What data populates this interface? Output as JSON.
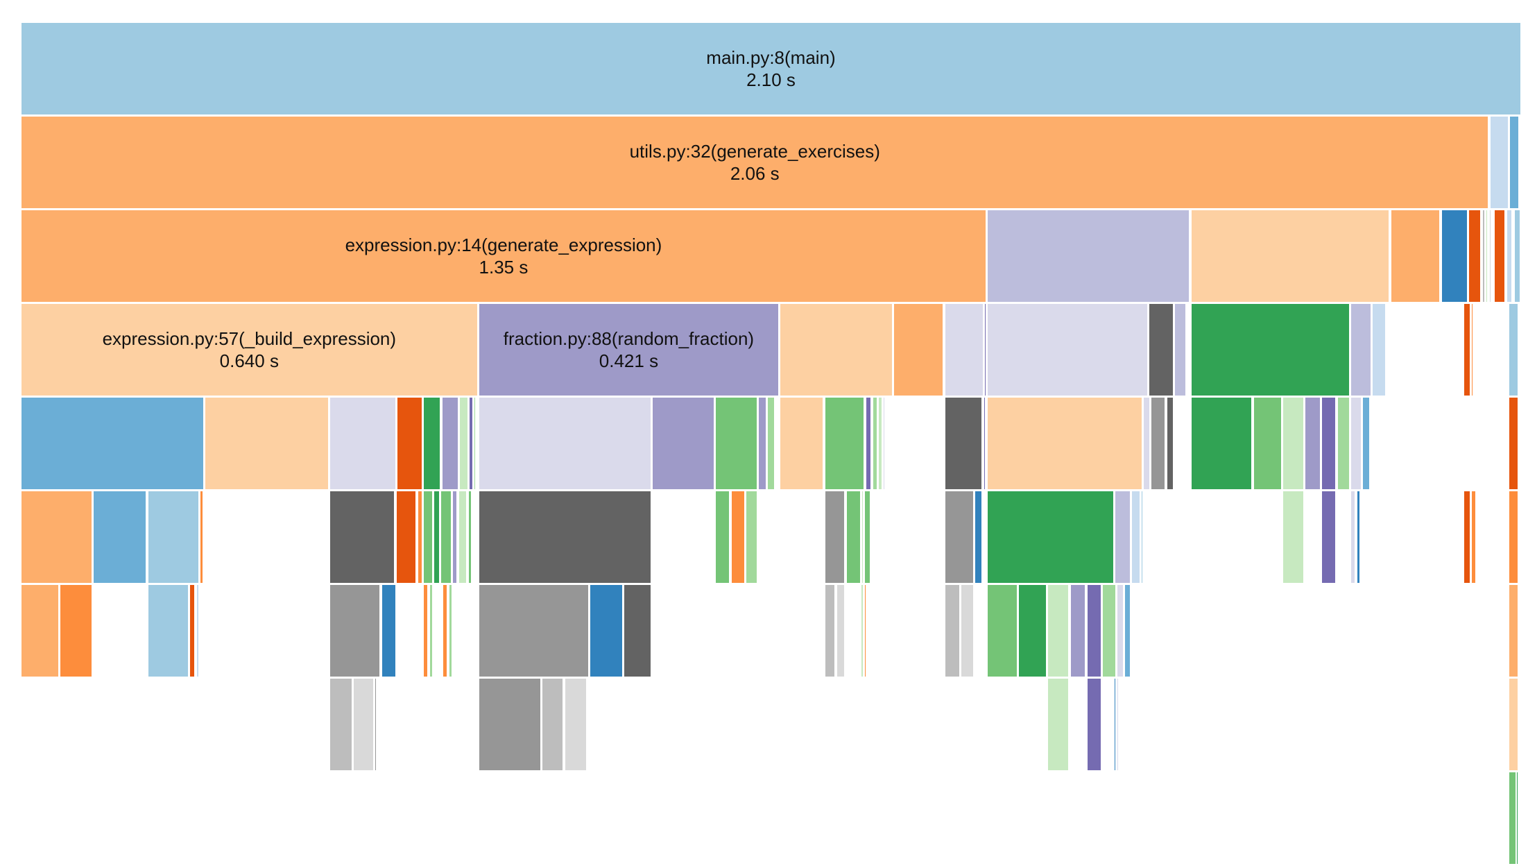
{
  "chart_data": {
    "type": "icicle",
    "title": "",
    "unit": "s",
    "total_time": 2.1,
    "note": "Spans are fractions [start, end] of the root frame's total time; depth is stack level (0 = root).",
    "labeled_frames": [
      {
        "depth": 0,
        "name": "main.py:8(main)",
        "time": "2.10 s",
        "span": [
          0.0,
          1.0
        ],
        "color": "#9ecae1"
      },
      {
        "depth": 1,
        "name": "utils.py:32(generate_exercises)",
        "time": "2.06 s",
        "span": [
          0.0,
          0.9785
        ],
        "color": "#fdae6b"
      },
      {
        "depth": 2,
        "name": "expression.py:14(generate_expression)",
        "time": "1.35 s",
        "span": [
          0.0,
          0.6435
        ],
        "color": "#fdae6b"
      },
      {
        "depth": 3,
        "name": "expression.py:57(_build_expression)",
        "time": "0.640 s",
        "span": [
          0.0,
          0.3045
        ],
        "color": "#fdd0a2"
      },
      {
        "depth": 3,
        "name": "fraction.py:88(random_fraction)",
        "time": "0.421 s",
        "span": [
          0.3052,
          0.5052
        ],
        "color": "#9e9ac8"
      }
    ],
    "unlabeled_frames": [
      {
        "depth": 1,
        "span": [
          0.9792,
          0.9916
        ],
        "color": "#c6dbef"
      },
      {
        "depth": 1,
        "span": [
          0.9922,
          0.9987
        ],
        "color": "#6baed6"
      },
      {
        "depth": 2,
        "span": [
          0.6442,
          0.7792
        ],
        "color": "#bcbddc"
      },
      {
        "depth": 2,
        "span": [
          0.7799,
          0.9123
        ],
        "color": "#fdd0a2"
      },
      {
        "depth": 2,
        "span": [
          0.913,
          0.9461
        ],
        "color": "#fdae6b"
      },
      {
        "depth": 2,
        "span": [
          0.9468,
          0.9643
        ],
        "color": "#3182bd"
      },
      {
        "depth": 2,
        "span": [
          0.9649,
          0.9734
        ],
        "color": "#e6550d"
      },
      {
        "depth": 2,
        "span": [
          0.974,
          0.976
        ],
        "color": "#bdbdbd"
      },
      {
        "depth": 2,
        "span": [
          0.9766,
          0.9779
        ],
        "color": "#c7e9c0"
      },
      {
        "depth": 2,
        "span": [
          0.9786,
          0.9799
        ],
        "color": "#d9d9d9"
      },
      {
        "depth": 2,
        "span": [
          0.9805,
          0.9812
        ],
        "color": "#d9d9d9"
      },
      {
        "depth": 2,
        "span": [
          0.9818,
          0.9896
        ],
        "color": "#e6550d"
      },
      {
        "depth": 2,
        "span": [
          0.9903,
          0.9942
        ],
        "color": "#c6dbef"
      },
      {
        "depth": 2,
        "span": [
          0.9955,
          0.9994
        ],
        "color": "#9ecae1"
      },
      {
        "depth": 3,
        "span": [
          0.5058,
          0.5812
        ],
        "color": "#fdd0a2"
      },
      {
        "depth": 3,
        "span": [
          0.5818,
          0.6149
        ],
        "color": "#fdae6b"
      },
      {
        "depth": 3,
        "span": [
          0.6156,
          0.6416
        ],
        "color": "#dadaeb"
      },
      {
        "depth": 3,
        "span": [
          0.6422,
          0.6435
        ],
        "color": "#756bb1"
      },
      {
        "depth": 3,
        "span": [
          0.6442,
          0.7513
        ],
        "color": "#dadaeb"
      },
      {
        "depth": 3,
        "span": [
          0.7519,
          0.7682
        ],
        "color": "#636363"
      },
      {
        "depth": 3,
        "span": [
          0.7688,
          0.7766
        ],
        "color": "#bcbddc"
      },
      {
        "depth": 3,
        "span": [
          0.7799,
          0.8857
        ],
        "color": "#31a354"
      },
      {
        "depth": 3,
        "span": [
          0.8864,
          0.9
        ],
        "color": "#bcbddc"
      },
      {
        "depth": 3,
        "span": [
          0.9006,
          0.9097
        ],
        "color": "#c6dbef"
      },
      {
        "depth": 3,
        "span": [
          0.9103,
          0.911
        ],
        "color": "#9ecae1"
      },
      {
        "depth": 3,
        "span": [
          0.9617,
          0.9662
        ],
        "color": "#e6550d"
      },
      {
        "depth": 3,
        "span": [
          0.9669,
          0.9682
        ],
        "color": "#fd8d3c"
      },
      {
        "depth": 3,
        "span": [
          0.9779,
          0.9786
        ],
        "color": "#c7e9c0"
      },
      {
        "depth": 3,
        "span": [
          0.9915,
          0.9981
        ],
        "color": "#9ecae1"
      },
      {
        "depth": 4,
        "span": [
          0.0,
          0.1221
        ],
        "color": "#6baed6"
      },
      {
        "depth": 4,
        "span": [
          0.1227,
          0.2052
        ],
        "color": "#fdd0a2"
      },
      {
        "depth": 4,
        "span": [
          0.2058,
          0.25
        ],
        "color": "#dadaeb"
      },
      {
        "depth": 4,
        "span": [
          0.2506,
          0.2675
        ],
        "color": "#e6550d"
      },
      {
        "depth": 4,
        "span": [
          0.2682,
          0.2799
        ],
        "color": "#31a354"
      },
      {
        "depth": 4,
        "span": [
          0.2805,
          0.2916
        ],
        "color": "#9e9ac8"
      },
      {
        "depth": 4,
        "span": [
          0.2922,
          0.2981
        ],
        "color": "#c7e9c0"
      },
      {
        "depth": 4,
        "span": [
          0.2987,
          0.3013
        ],
        "color": "#756bb1"
      },
      {
        "depth": 4,
        "span": [
          0.3019,
          0.3032
        ],
        "color": "#a1d99b"
      },
      {
        "depth": 4,
        "span": [
          0.3052,
          0.4201
        ],
        "color": "#dadaeb"
      },
      {
        "depth": 4,
        "span": [
          0.4208,
          0.4623
        ],
        "color": "#9e9ac8"
      },
      {
        "depth": 4,
        "span": [
          0.463,
          0.4909
        ],
        "color": "#74c476"
      },
      {
        "depth": 4,
        "span": [
          0.4916,
          0.4968
        ],
        "color": "#9e9ac8"
      },
      {
        "depth": 4,
        "span": [
          0.4974,
          0.5026
        ],
        "color": "#a1d99b"
      },
      {
        "depth": 4,
        "span": [
          0.5058,
          0.5351
        ],
        "color": "#fdd0a2"
      },
      {
        "depth": 4,
        "span": [
          0.5357,
          0.5623
        ],
        "color": "#74c476"
      },
      {
        "depth": 4,
        "span": [
          0.563,
          0.5669
        ],
        "color": "#756bb1"
      },
      {
        "depth": 4,
        "span": [
          0.5675,
          0.5708
        ],
        "color": "#a1d99b"
      },
      {
        "depth": 4,
        "span": [
          0.5714,
          0.574
        ],
        "color": "#c7e9c0"
      },
      {
        "depth": 4,
        "span": [
          0.5747,
          0.576
        ],
        "color": "#dadaeb"
      },
      {
        "depth": 4,
        "span": [
          0.6156,
          0.6409
        ],
        "color": "#636363"
      },
      {
        "depth": 4,
        "span": [
          0.6416,
          0.6429
        ],
        "color": "#756bb1"
      },
      {
        "depth": 4,
        "span": [
          0.6442,
          0.7474
        ],
        "color": "#fdd0a2"
      },
      {
        "depth": 4,
        "span": [
          0.7481,
          0.7526
        ],
        "color": "#dadaeb"
      },
      {
        "depth": 4,
        "span": [
          0.7532,
          0.763
        ],
        "color": "#969696"
      },
      {
        "depth": 4,
        "span": [
          0.7636,
          0.7682
        ],
        "color": "#636363"
      },
      {
        "depth": 4,
        "span": [
          0.7799,
          0.8208
        ],
        "color": "#31a354"
      },
      {
        "depth": 4,
        "span": [
          0.8214,
          0.8403
        ],
        "color": "#74c476"
      },
      {
        "depth": 4,
        "span": [
          0.8409,
          0.8552
        ],
        "color": "#c7e9c0"
      },
      {
        "depth": 4,
        "span": [
          0.8558,
          0.8662
        ],
        "color": "#9e9ac8"
      },
      {
        "depth": 4,
        "span": [
          0.8669,
          0.8766
        ],
        "color": "#756bb1"
      },
      {
        "depth": 4,
        "span": [
          0.8773,
          0.8857
        ],
        "color": "#a1d99b"
      },
      {
        "depth": 4,
        "span": [
          0.8864,
          0.8935
        ],
        "color": "#dadaeb"
      },
      {
        "depth": 4,
        "span": [
          0.8942,
          0.8994
        ],
        "color": "#6baed6"
      },
      {
        "depth": 4,
        "span": [
          0.9916,
          0.9981
        ],
        "color": "#e6550d"
      },
      {
        "depth": 5,
        "span": [
          0.0,
          0.0474
        ],
        "color": "#fdae6b"
      },
      {
        "depth": 5,
        "span": [
          0.0481,
          0.0838
        ],
        "color": "#6baed6"
      },
      {
        "depth": 5,
        "span": [
          0.0844,
          0.1188
        ],
        "color": "#9ecae1"
      },
      {
        "depth": 5,
        "span": [
          0.1195,
          0.1214
        ],
        "color": "#fd8d3c"
      },
      {
        "depth": 5,
        "span": [
          0.2058,
          0.2494
        ],
        "color": "#636363"
      },
      {
        "depth": 5,
        "span": [
          0.25,
          0.2636
        ],
        "color": "#e6550d"
      },
      {
        "depth": 5,
        "span": [
          0.2643,
          0.2675
        ],
        "color": "#fd8d3c"
      },
      {
        "depth": 5,
        "span": [
          0.2682,
          0.2747
        ],
        "color": "#74c476"
      },
      {
        "depth": 5,
        "span": [
          0.2753,
          0.2792
        ],
        "color": "#31a354"
      },
      {
        "depth": 5,
        "span": [
          0.2799,
          0.287
        ],
        "color": "#74c476"
      },
      {
        "depth": 5,
        "span": [
          0.2877,
          0.2909
        ],
        "color": "#9e9ac8"
      },
      {
        "depth": 5,
        "span": [
          0.2916,
          0.2974
        ],
        "color": "#c7e9c0"
      },
      {
        "depth": 5,
        "span": [
          0.2981,
          0.3006
        ],
        "color": "#74c476"
      },
      {
        "depth": 5,
        "span": [
          0.3052,
          0.4201
        ],
        "color": "#636363"
      },
      {
        "depth": 5,
        "span": [
          0.463,
          0.4727
        ],
        "color": "#74c476"
      },
      {
        "depth": 5,
        "span": [
          0.4734,
          0.4825
        ],
        "color": "#fd8d3c"
      },
      {
        "depth": 5,
        "span": [
          0.4831,
          0.4909
        ],
        "color": "#a1d99b"
      },
      {
        "depth": 5,
        "span": [
          0.5357,
          0.5494
        ],
        "color": "#969696"
      },
      {
        "depth": 5,
        "span": [
          0.55,
          0.5597
        ],
        "color": "#74c476"
      },
      {
        "depth": 5,
        "span": [
          0.5604,
          0.5617
        ],
        "color": "#c7e9c0"
      },
      {
        "depth": 5,
        "span": [
          0.5623,
          0.5662
        ],
        "color": "#74c476"
      },
      {
        "depth": 5,
        "span": [
          0.574,
          0.5747
        ],
        "color": "#c7e9c0"
      },
      {
        "depth": 5,
        "span": [
          0.6156,
          0.6351
        ],
        "color": "#969696"
      },
      {
        "depth": 5,
        "span": [
          0.6357,
          0.6409
        ],
        "color": "#3182bd"
      },
      {
        "depth": 5,
        "span": [
          0.6442,
          0.7286
        ],
        "color": "#31a354"
      },
      {
        "depth": 5,
        "span": [
          0.7292,
          0.7396
        ],
        "color": "#bcbddc"
      },
      {
        "depth": 5,
        "span": [
          0.7403,
          0.7461
        ],
        "color": "#c6dbef"
      },
      {
        "depth": 5,
        "span": [
          0.7468,
          0.7481
        ],
        "color": "#9ecae1"
      },
      {
        "depth": 5,
        "span": [
          0.8409,
          0.8552
        ],
        "color": "#c7e9c0"
      },
      {
        "depth": 5,
        "span": [
          0.8669,
          0.8766
        ],
        "color": "#756bb1"
      },
      {
        "depth": 5,
        "span": [
          0.8864,
          0.8896
        ],
        "color": "#dadaeb"
      },
      {
        "depth": 5,
        "span": [
          0.8903,
          0.8929
        ],
        "color": "#3182bd"
      },
      {
        "depth": 5,
        "span": [
          0.9617,
          0.9662
        ],
        "color": "#e6550d"
      },
      {
        "depth": 5,
        "span": [
          0.9669,
          0.9701
        ],
        "color": "#fd8d3c"
      },
      {
        "depth": 5,
        "span": [
          0.9766,
          0.9773
        ],
        "color": "#c7e9c0"
      },
      {
        "depth": 5,
        "span": [
          0.9916,
          0.9981
        ],
        "color": "#fd8d3c"
      },
      {
        "depth": 6,
        "span": [
          0.0,
          0.0253
        ],
        "color": "#fdae6b"
      },
      {
        "depth": 6,
        "span": [
          0.026,
          0.0474
        ],
        "color": "#fd8d3c"
      },
      {
        "depth": 6,
        "span": [
          0.0844,
          0.1117
        ],
        "color": "#9ecae1"
      },
      {
        "depth": 6,
        "span": [
          0.1123,
          0.1162
        ],
        "color": "#e6550d"
      },
      {
        "depth": 6,
        "span": [
          0.1169,
          0.1188
        ],
        "color": "#c6dbef"
      },
      {
        "depth": 6,
        "span": [
          0.2058,
          0.2396
        ],
        "color": "#969696"
      },
      {
        "depth": 6,
        "span": [
          0.2403,
          0.25
        ],
        "color": "#3182bd"
      },
      {
        "depth": 6,
        "span": [
          0.2682,
          0.2714
        ],
        "color": "#fd8d3c"
      },
      {
        "depth": 6,
        "span": [
          0.2721,
          0.2747
        ],
        "color": "#a1d99b"
      },
      {
        "depth": 6,
        "span": [
          0.2812,
          0.2844
        ],
        "color": "#fd8d3c"
      },
      {
        "depth": 6,
        "span": [
          0.2851,
          0.2877
        ],
        "color": "#a1d99b"
      },
      {
        "depth": 6,
        "span": [
          0.2961,
          0.2968
        ],
        "color": "#fd8d3c"
      },
      {
        "depth": 6,
        "span": [
          0.2974,
          0.2981
        ],
        "color": "#a1d99b"
      },
      {
        "depth": 6,
        "span": [
          0.3052,
          0.3785
        ],
        "color": "#969696"
      },
      {
        "depth": 6,
        "span": [
          0.3792,
          0.4013
        ],
        "color": "#3182bd"
      },
      {
        "depth": 6,
        "span": [
          0.4019,
          0.4201
        ],
        "color": "#636363"
      },
      {
        "depth": 6,
        "span": [
          0.5357,
          0.5429
        ],
        "color": "#bdbdbd"
      },
      {
        "depth": 6,
        "span": [
          0.5435,
          0.5494
        ],
        "color": "#d9d9d9"
      },
      {
        "depth": 6,
        "span": [
          0.5597,
          0.5617
        ],
        "color": "#c7e9c0"
      },
      {
        "depth": 6,
        "span": [
          0.5623,
          0.5636
        ],
        "color": "#fd8d3c"
      },
      {
        "depth": 6,
        "span": [
          0.5643,
          0.5656
        ],
        "color": "#a1d99b"
      },
      {
        "depth": 6,
        "span": [
          0.6156,
          0.626
        ],
        "color": "#bdbdbd"
      },
      {
        "depth": 6,
        "span": [
          0.6266,
          0.6351
        ],
        "color": "#d9d9d9"
      },
      {
        "depth": 6,
        "span": [
          0.6442,
          0.6643
        ],
        "color": "#74c476"
      },
      {
        "depth": 6,
        "span": [
          0.6649,
          0.6838
        ],
        "color": "#31a354"
      },
      {
        "depth": 6,
        "span": [
          0.6844,
          0.6987
        ],
        "color": "#c7e9c0"
      },
      {
        "depth": 6,
        "span": [
          0.6994,
          0.7097
        ],
        "color": "#9e9ac8"
      },
      {
        "depth": 6,
        "span": [
          0.7104,
          0.7201
        ],
        "color": "#756bb1"
      },
      {
        "depth": 6,
        "span": [
          0.7208,
          0.7299
        ],
        "color": "#a1d99b"
      },
      {
        "depth": 6,
        "span": [
          0.7305,
          0.7351
        ],
        "color": "#dadaeb"
      },
      {
        "depth": 6,
        "span": [
          0.7357,
          0.7396
        ],
        "color": "#6baed6"
      },
      {
        "depth": 6,
        "span": [
          0.9916,
          0.9981
        ],
        "color": "#fdae6b"
      },
      {
        "depth": 7,
        "span": [
          0.2058,
          0.2208
        ],
        "color": "#bdbdbd"
      },
      {
        "depth": 7,
        "span": [
          0.2214,
          0.2351
        ],
        "color": "#d9d9d9"
      },
      {
        "depth": 7,
        "span": [
          0.2357,
          0.237
        ],
        "color": "#969696"
      },
      {
        "depth": 7,
        "span": [
          0.3052,
          0.3468
        ],
        "color": "#969696"
      },
      {
        "depth": 7,
        "span": [
          0.3474,
          0.3617
        ],
        "color": "#bdbdbd"
      },
      {
        "depth": 7,
        "span": [
          0.3623,
          0.3773
        ],
        "color": "#d9d9d9"
      },
      {
        "depth": 7,
        "span": [
          0.6844,
          0.6987
        ],
        "color": "#c7e9c0"
      },
      {
        "depth": 7,
        "span": [
          0.7104,
          0.7201
        ],
        "color": "#756bb1"
      },
      {
        "depth": 7,
        "span": [
          0.7286,
          0.7299
        ],
        "color": "#3182bd"
      },
      {
        "depth": 7,
        "span": [
          0.7305,
          0.7318
        ],
        "color": "#dadaeb"
      },
      {
        "depth": 7,
        "span": [
          0.9916,
          0.9981
        ],
        "color": "#fdd0a2"
      },
      {
        "depth": 8,
        "span": [
          0.9916,
          0.9968
        ],
        "color": "#74c476"
      },
      {
        "depth": 8,
        "span": [
          0.9968,
          0.9981
        ],
        "color": "#31a354"
      }
    ]
  }
}
